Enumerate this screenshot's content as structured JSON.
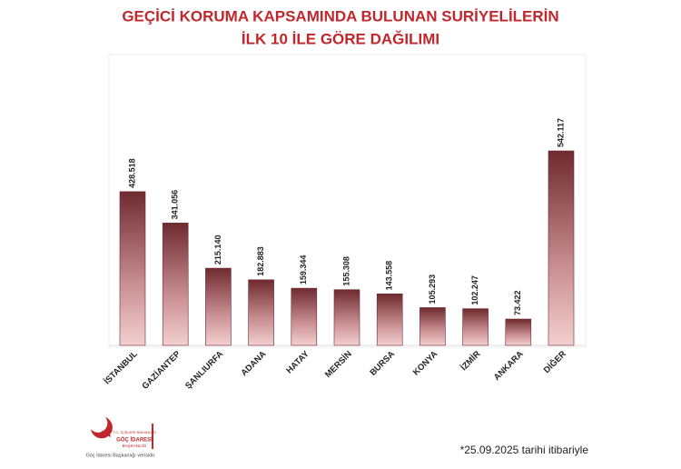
{
  "chart_data": {
    "type": "bar",
    "title": [
      "GEÇİCİ KORUMA KAPSAMINDA BULUNAN SURİYELİLERİN",
      "İLK 10 İLE GÖRE DAĞILIMI"
    ],
    "categories": [
      "İSTANBUL",
      "GAZİANTEP",
      "ŞANLIURFA",
      "ADANA",
      "HATAY",
      "MERSİN",
      "BURSA",
      "KONYA",
      "İZMİR",
      "ANKARA",
      "DİĞER"
    ],
    "values": [
      428518,
      341056,
      215140,
      182883,
      159344,
      155308,
      143558,
      105293,
      102247,
      73422,
      542117
    ],
    "value_labels": [
      "428.518",
      "341.056",
      "215.140",
      "182.883",
      "159.344",
      "155.308",
      "143.558",
      "105.293",
      "102.247",
      "73.422",
      "542.117"
    ],
    "color": "#6e2a2f",
    "footnote": "*25.09.2025 tarihi itibariyle",
    "logo": {
      "top": "T.C. İÇİŞLERİ BAKANLIĞI",
      "name": "GÖÇ İDARESİ",
      "sub": "BAŞKANLIĞI",
      "caption": "Göç İdaresi Başkanlığı verisidir."
    }
  }
}
